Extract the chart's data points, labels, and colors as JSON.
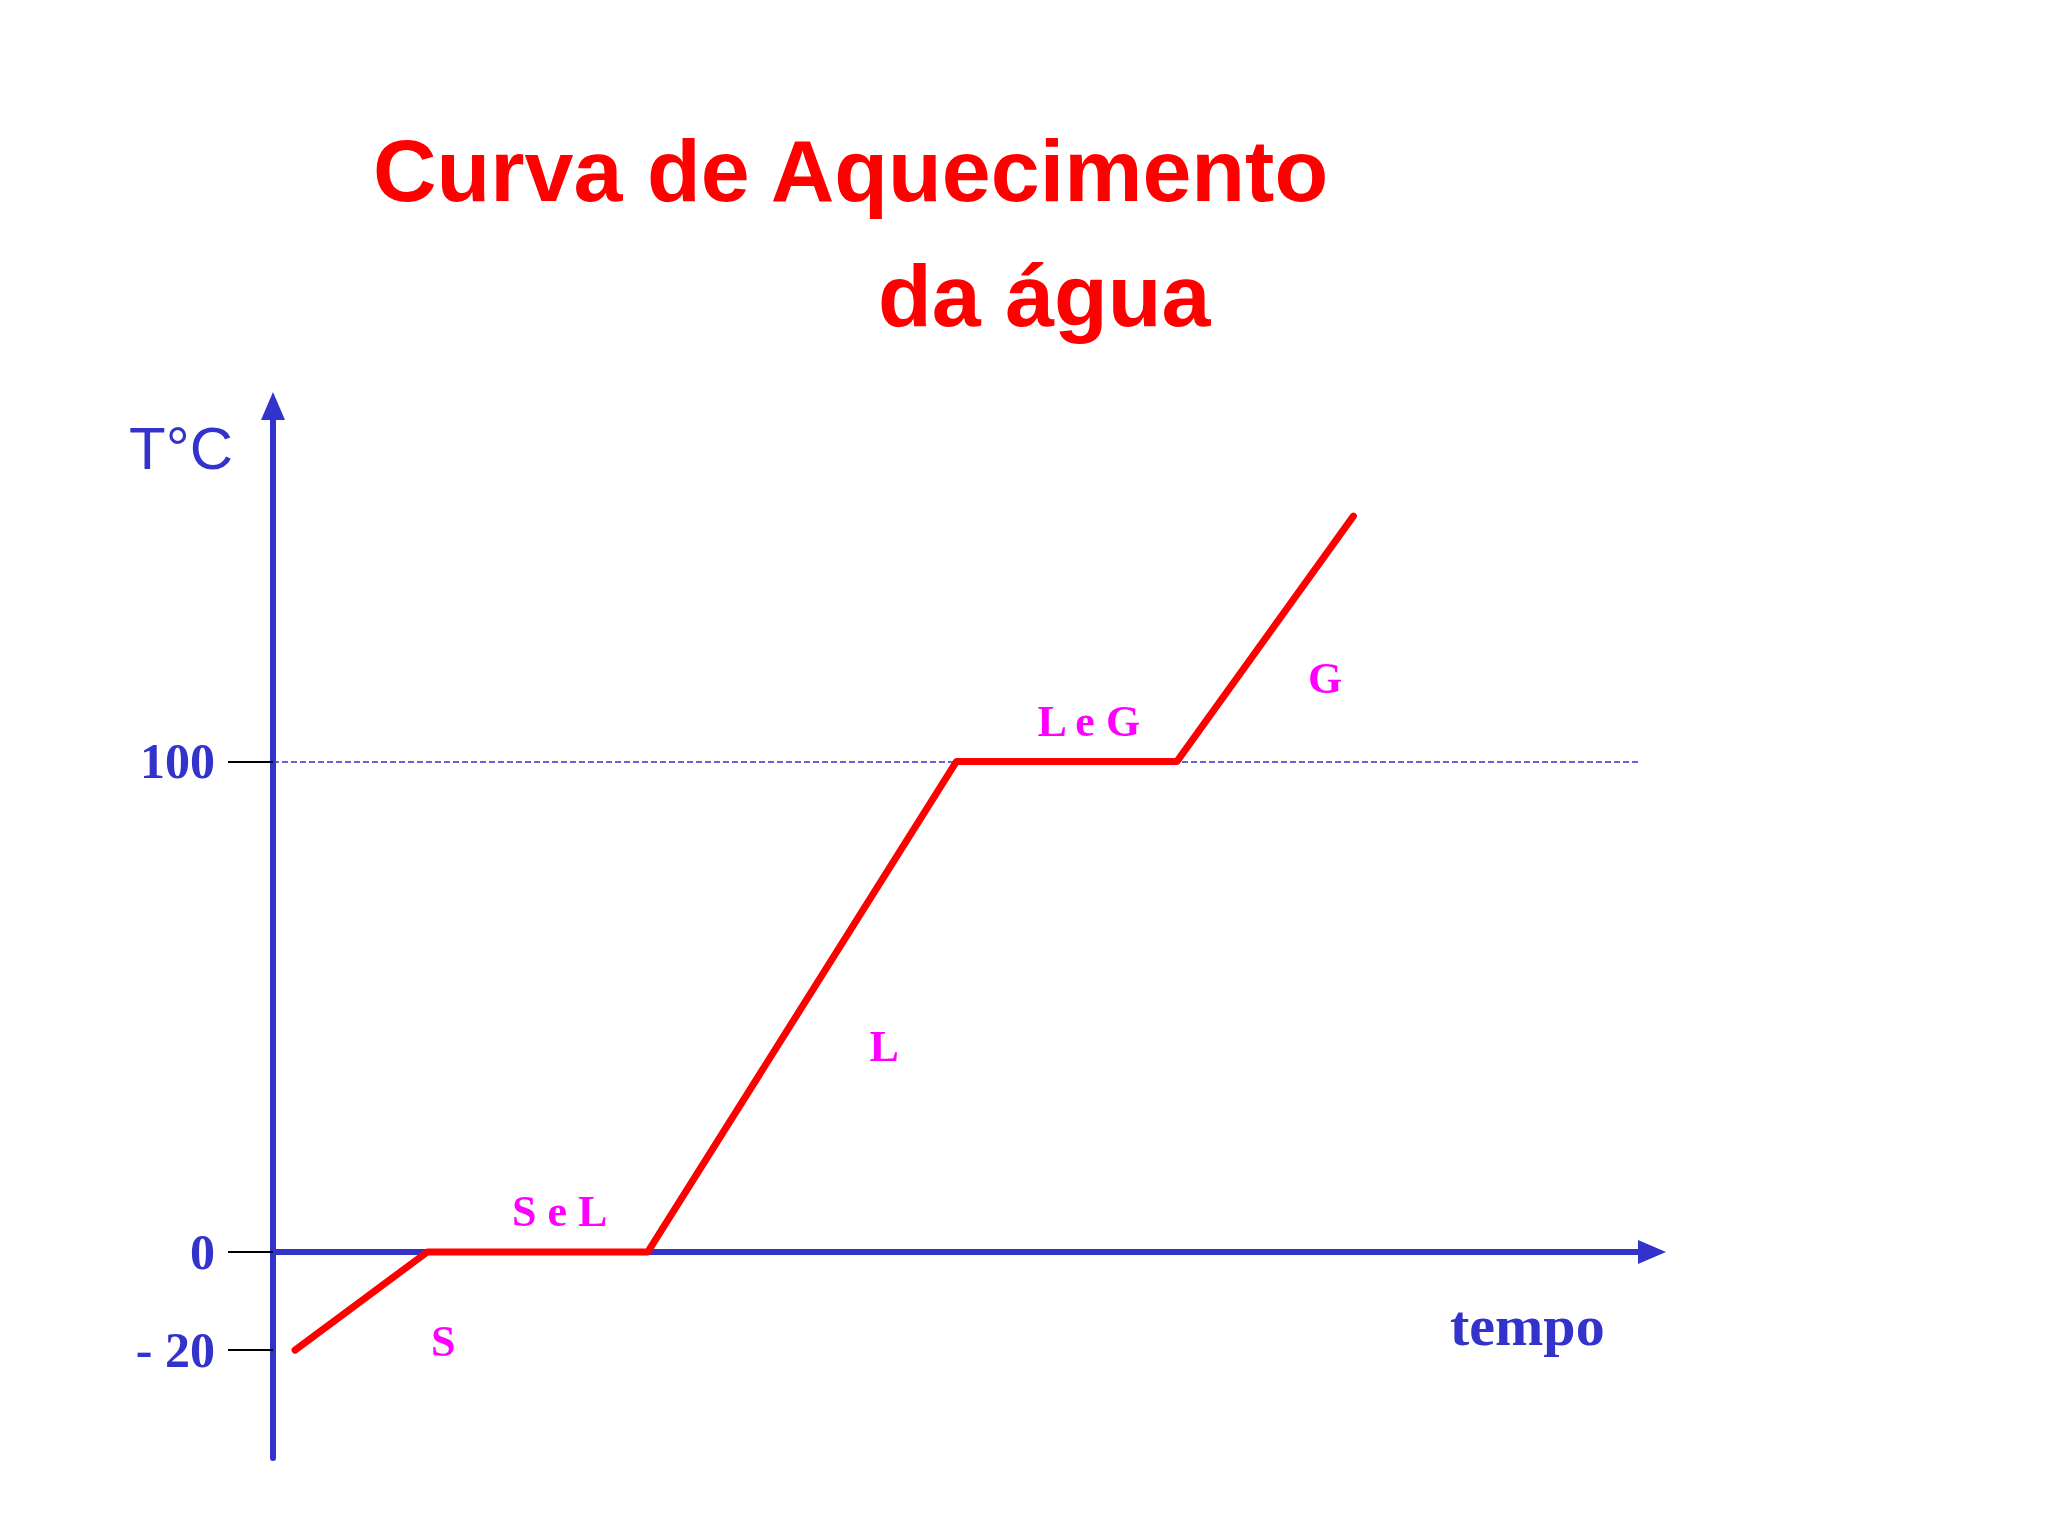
{
  "chart_data": {
    "type": "line",
    "title": "Curva de Aquecimento\nda água",
    "xlabel": "tempo",
    "ylabel": "T°C",
    "categories": [
      null,
      null,
      null,
      null,
      null,
      null,
      null,
      null,
      null,
      null,
      null,
      null,
      null,
      null,
      null,
      null,
      null,
      null,
      null,
      null,
      null,
      null,
      null,
      null,
      null,
      null,
      null,
      null,
      null,
      null,
      null
    ],
    "series": [
      {
        "color": "#ff0000",
        "values": [
          -20,
          null,
          null,
          0,
          null,
          null,
          null,
          null,
          0,
          null,
          null,
          null,
          null,
          null,
          null,
          100,
          null,
          null,
          null,
          null,
          100,
          null,
          null,
          null,
          150,
          null,
          null,
          null,
          null,
          null,
          null
        ]
      }
    ],
    "ylim": [
      -42,
      170
    ],
    "yticks": [
      {
        "value": -20,
        "label": "- 20"
      },
      0,
      100
    ],
    "tick_labels": "y",
    "grid": false,
    "marker": "none",
    "line_style": "solid",
    "ref_lines": [
      {
        "axis": "y",
        "value": 100,
        "color": "#3333cc",
        "line_style": "dashed"
      },
      {
        "axis": "y",
        "value": 0,
        "color": "#3333cc",
        "line_style": "solid"
      }
    ],
    "annotations": [
      "S",
      "S e L",
      "L",
      "L e G",
      "G"
    ]
  }
}
